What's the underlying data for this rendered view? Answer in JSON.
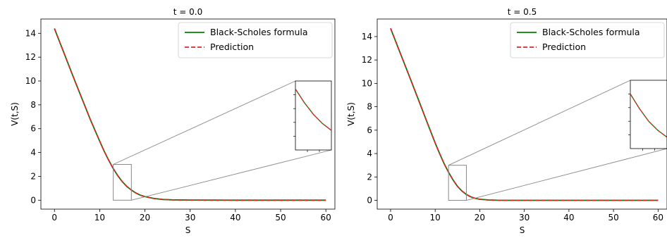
{
  "chart_data": [
    {
      "type": "line",
      "title": "t = 0.0",
      "xlabel": "S",
      "ylabel": "V(t,S)",
      "xlim": [
        -3,
        62
      ],
      "ylim": [
        -0.75,
        15.2
      ],
      "xticks": [
        0,
        10,
        20,
        30,
        40,
        50,
        60
      ],
      "yticks": [
        0,
        2,
        4,
        6,
        8,
        10,
        12,
        14
      ],
      "grid": false,
      "legend": "top-right",
      "series": [
        {
          "name": "Black-Scholes formula",
          "color": "#008000",
          "linestyle": "solid",
          "x": [
            0,
            2,
            4,
            6,
            8,
            10,
            11,
            12,
            13,
            14,
            15,
            16,
            17,
            18,
            19,
            20,
            22,
            24,
            26,
            30,
            40,
            50,
            60
          ],
          "y": [
            14.4,
            12.45,
            10.5,
            8.6,
            6.7,
            4.95,
            4.1,
            3.35,
            2.65,
            2.05,
            1.55,
            1.15,
            0.85,
            0.6,
            0.42,
            0.3,
            0.14,
            0.06,
            0.03,
            0.01,
            0,
            0,
            0
          ]
        },
        {
          "name": "Prediction",
          "color": "#d62728",
          "linestyle": "dashed",
          "x": [
            0,
            2,
            4,
            6,
            8,
            10,
            11,
            12,
            13,
            14,
            15,
            16,
            17,
            18,
            19,
            20,
            22,
            24,
            26,
            30,
            40,
            50,
            60
          ],
          "y": [
            14.4,
            12.45,
            10.5,
            8.6,
            6.7,
            4.95,
            4.1,
            3.35,
            2.65,
            2.05,
            1.55,
            1.15,
            0.85,
            0.6,
            0.42,
            0.3,
            0.14,
            0.06,
            0.03,
            0.01,
            0,
            0,
            0
          ]
        }
      ],
      "inset": {
        "xlim": [
          13,
          17
        ],
        "ylim": [
          0,
          3
        ]
      }
    },
    {
      "type": "line",
      "title": "t = 0.5",
      "xlabel": "S",
      "ylabel": "V(t,S)",
      "xlim": [
        -3,
        62
      ],
      "ylim": [
        -0.75,
        15.5
      ],
      "xticks": [
        0,
        10,
        20,
        30,
        40,
        50,
        60
      ],
      "yticks": [
        0,
        2,
        4,
        6,
        8,
        10,
        12,
        14
      ],
      "grid": false,
      "legend": "top-right",
      "series": [
        {
          "name": "Black-Scholes formula",
          "color": "#008000",
          "linestyle": "solid",
          "x": [
            0,
            2,
            4,
            6,
            8,
            10,
            11,
            12,
            13,
            14,
            15,
            16,
            17,
            18,
            19,
            20,
            22,
            24,
            26,
            30,
            40,
            50,
            60
          ],
          "y": [
            14.7,
            12.75,
            10.8,
            8.85,
            6.85,
            4.9,
            4.0,
            3.15,
            2.4,
            1.75,
            1.2,
            0.8,
            0.5,
            0.3,
            0.17,
            0.09,
            0.03,
            0.01,
            0,
            0,
            0,
            0,
            0
          ]
        },
        {
          "name": "Prediction",
          "color": "#d62728",
          "linestyle": "dashed",
          "x": [
            0,
            2,
            4,
            6,
            8,
            10,
            11,
            12,
            13,
            14,
            15,
            16,
            17,
            18,
            19,
            20,
            22,
            24,
            26,
            30,
            40,
            50,
            60
          ],
          "y": [
            14.7,
            12.75,
            10.8,
            8.85,
            6.85,
            4.9,
            4.0,
            3.15,
            2.4,
            1.75,
            1.2,
            0.8,
            0.5,
            0.3,
            0.17,
            0.09,
            0.03,
            0.01,
            0,
            0,
            0,
            0,
            0
          ]
        }
      ],
      "inset": {
        "xlim": [
          13,
          17
        ],
        "ylim": [
          0,
          3
        ]
      }
    }
  ]
}
